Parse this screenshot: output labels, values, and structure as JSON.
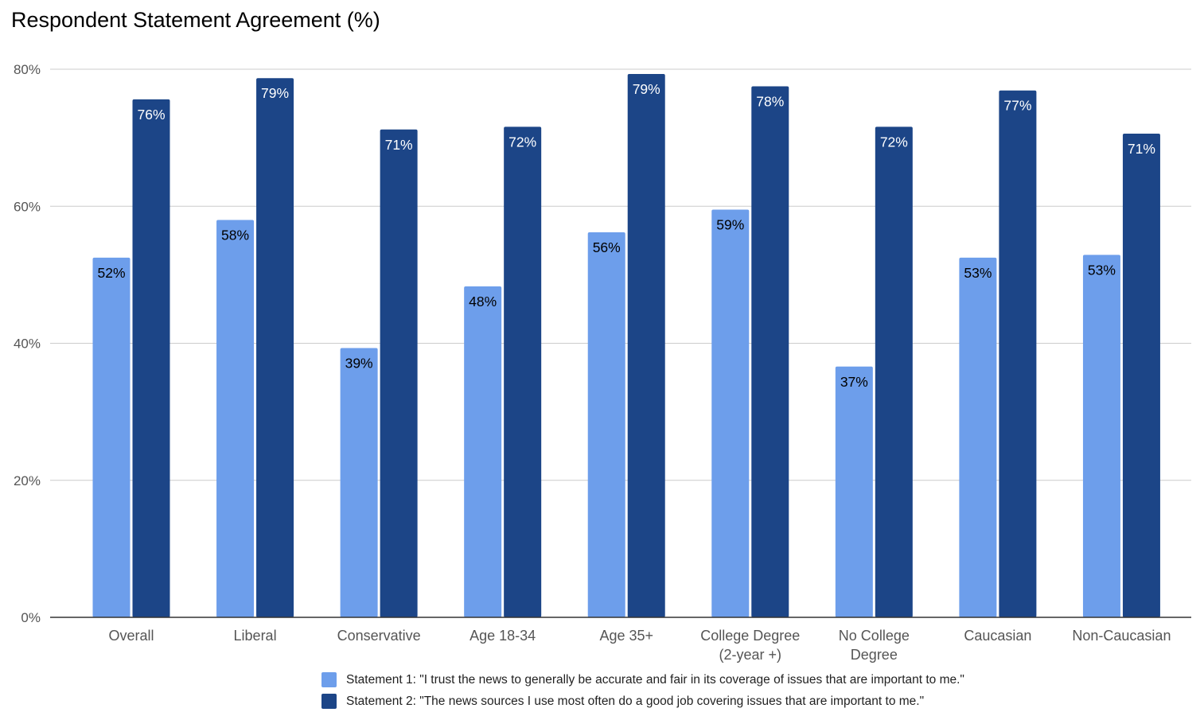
{
  "chart_data": {
    "type": "bar",
    "title": "Respondent Statement Agreement (%)",
    "categories": [
      [
        "Overall"
      ],
      [
        "Liberal"
      ],
      [
        "Conservative"
      ],
      [
        "Age 18-34"
      ],
      [
        "Age 35+"
      ],
      [
        "College Degree",
        "(2-year +)"
      ],
      [
        "No College",
        "Degree"
      ],
      [
        "Caucasian"
      ],
      [
        "Non-Caucasian"
      ]
    ],
    "series": [
      {
        "name": "Statement 1: \"I trust the news to generally be accurate and fair in its coverage of issues that are important to me.\"",
        "color": "#6d9eeb",
        "label_color": "#000000",
        "values": [
          52.5,
          58,
          39.3,
          48.3,
          56.2,
          59.5,
          36.6,
          52.5,
          52.9
        ],
        "labels": [
          "52%",
          "58%",
          "39%",
          "48%",
          "56%",
          "59%",
          "37%",
          "53%",
          "53%"
        ]
      },
      {
        "name": "Statement 2: \"The news sources I use most often do a good job covering issues that are important to me.\"",
        "color": "#1c4587",
        "label_color": "#ffffff",
        "values": [
          75.6,
          78.7,
          71.2,
          71.6,
          79.3,
          77.5,
          71.6,
          76.9,
          70.6
        ],
        "labels": [
          "76%",
          "79%",
          "71%",
          "72%",
          "79%",
          "78%",
          "72%",
          "77%",
          "71%"
        ]
      }
    ],
    "ylim": [
      0,
      80
    ],
    "yticks": [
      0,
      20,
      40,
      60,
      80
    ],
    "ytick_labels": [
      "0%",
      "20%",
      "40%",
      "60%",
      "80%"
    ],
    "grid": true,
    "legend_position": "bottom"
  }
}
